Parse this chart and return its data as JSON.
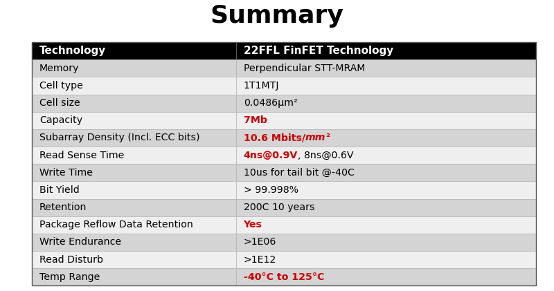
{
  "title": "Summary",
  "title_fontsize": 26,
  "title_fontweight": "bold",
  "header_row": [
    "Technology",
    "22FFL FinFET Technology"
  ],
  "header_bg": "#000000",
  "header_fg": "#ffffff",
  "rows": [
    {
      "label": "Memory",
      "value_parts": [
        {
          "text": "Perpendicular STT-MRAM",
          "color": "#000000",
          "bold": false,
          "italic": false
        }
      ],
      "bg": "#d4d4d4"
    },
    {
      "label": "Cell type",
      "value_parts": [
        {
          "text": "1T1MTJ",
          "color": "#000000",
          "bold": false,
          "italic": false
        }
      ],
      "bg": "#efefef"
    },
    {
      "label": "Cell size",
      "value_parts": [
        {
          "text": "0.0486μm²",
          "color": "#000000",
          "bold": false,
          "italic": false
        }
      ],
      "bg": "#d4d4d4"
    },
    {
      "label": "Capacity",
      "value_parts": [
        {
          "text": "7Mb",
          "color": "#cc0000",
          "bold": true,
          "italic": false
        }
      ],
      "bg": "#efefef"
    },
    {
      "label": "Subarray Density (Incl. ECC bits)",
      "value_parts": [
        {
          "text": "10.6 Mbits/",
          "color": "#cc0000",
          "bold": true,
          "italic": false
        },
        {
          "text": "mm",
          "color": "#cc0000",
          "bold": true,
          "italic": true
        },
        {
          "text": "²",
          "color": "#cc0000",
          "bold": true,
          "italic": false,
          "superscript": true
        }
      ],
      "bg": "#d4d4d4"
    },
    {
      "label": "Read Sense Time",
      "value_parts": [
        {
          "text": "4ns@0.9V",
          "color": "#cc0000",
          "bold": true,
          "italic": false
        },
        {
          "text": ", 8ns@0.6V",
          "color": "#000000",
          "bold": false,
          "italic": false
        }
      ],
      "bg": "#efefef"
    },
    {
      "label": "Write Time",
      "value_parts": [
        {
          "text": "10us for tail bit @-40C",
          "color": "#000000",
          "bold": false,
          "italic": false
        }
      ],
      "bg": "#d4d4d4"
    },
    {
      "label": "Bit Yield",
      "value_parts": [
        {
          "text": "> 99.998%",
          "color": "#000000",
          "bold": false,
          "italic": false
        }
      ],
      "bg": "#efefef"
    },
    {
      "label": "Retention",
      "value_parts": [
        {
          "text": "200C 10 years",
          "color": "#000000",
          "bold": false,
          "italic": false
        }
      ],
      "bg": "#d4d4d4"
    },
    {
      "label": "Package Reflow Data Retention",
      "value_parts": [
        {
          "text": "Yes",
          "color": "#cc0000",
          "bold": true,
          "italic": false
        }
      ],
      "bg": "#efefef"
    },
    {
      "label": "Write Endurance",
      "value_parts": [
        {
          "text": ">1E06",
          "color": "#000000",
          "bold": false,
          "italic": false
        }
      ],
      "bg": "#d4d4d4"
    },
    {
      "label": "Read Disturb",
      "value_parts": [
        {
          "text": ">1E12",
          "color": "#000000",
          "bold": false,
          "italic": false
        }
      ],
      "bg": "#efefef"
    },
    {
      "label": "Temp Range",
      "value_parts": [
        {
          "text": "-40°C to 125°C",
          "color": "#cc0000",
          "bold": true,
          "italic": false
        }
      ],
      "bg": "#d4d4d4"
    }
  ],
  "figure_bg": "#ffffff",
  "font_family": "DejaVu Sans"
}
